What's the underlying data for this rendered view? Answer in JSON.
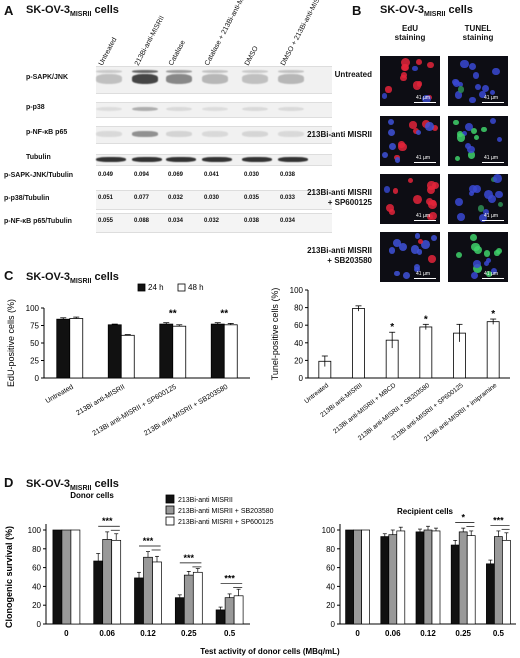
{
  "panelA": {
    "letter": "A",
    "title_main": "SK-OV-3",
    "title_sub": "MISRII",
    "title_tail": " cells",
    "lanes": [
      "Untreated",
      "213Bi-anti-MISRII",
      "Catalase",
      "Catalase + 213Bi-anti-MISRII",
      "DMSO",
      "DMSO + 213Bi-anti-MISRII"
    ],
    "blot_labels": [
      "p-SAPK/JNK",
      "p-p38",
      "p-NF-κB p65",
      "Tubulin"
    ],
    "ratio_rows": [
      {
        "label": "p-SAPK-JNK/Tubulin",
        "values": [
          "0.049",
          "0.094",
          "0.069",
          "0.041",
          "0.030",
          "0.038"
        ]
      },
      {
        "label": "p-p38/Tubulin",
        "values": [
          "0.051",
          "0.077",
          "0.032",
          "0.030",
          "0.035",
          "0.033"
        ]
      },
      {
        "label": "p-NF-κB p65/Tubulin",
        "values": [
          "0.055",
          "0.088",
          "0.034",
          "0.032",
          "0.038",
          "0.034"
        ]
      }
    ]
  },
  "panelB": {
    "letter": "B",
    "title_main": "SK-OV-3",
    "title_sub": "MISRII",
    "title_tail": " cells",
    "col_heads": [
      "EdU\nstaining",
      "TUNEL\nstaining"
    ],
    "rows": [
      "Untreated",
      "213Bi-anti MISRII",
      "213Bi-anti MISRII\n+ SP600125",
      "213Bi-anti MISRII\n+ SB203580"
    ],
    "scale_label": "41 µm"
  },
  "panelC": {
    "letter": "C",
    "title_main": "SK-OV-3",
    "title_sub": "MISRII",
    "title_tail": " cells",
    "legend": [
      "24 h",
      "48 h"
    ],
    "colors": {
      "bar_24h": "#111111",
      "bar_48h": "#ffffff"
    },
    "chart_data": [
      {
        "type": "bar",
        "categories": [
          "Untreated",
          "213Bi anti-MISRII",
          "213Bi anti-MISRII + SP600125",
          "213Bi anti-MISRII + SB203580"
        ],
        "series": [
          {
            "name": "24 h",
            "values": [
              84,
              76,
              77,
              77
            ],
            "errors": [
              2,
              1,
              2,
              2
            ]
          },
          {
            "name": "48 h",
            "values": [
              85,
              61,
              74,
              76
            ],
            "errors": [
              2,
              1,
              2,
              2
            ]
          }
        ],
        "significance": [
          "",
          "",
          "**",
          "**"
        ],
        "ylabel": "EdU-positive cells (%)",
        "yticks": [
          0,
          25,
          50,
          75,
          100
        ],
        "ylim": [
          0,
          100
        ]
      },
      {
        "type": "bar",
        "categories": [
          "Untreated",
          "213Bi anti-MISRII",
          "213Bi anti-MISRII + MBCD",
          "213Bi anti-MISRII + SB203580",
          "213Bi anti-MISRII + SP600125",
          "213Bi anti-MISRII + imipramine"
        ],
        "series": [
          {
            "values": [
              19,
              79,
              43,
              58,
              51,
              64
            ],
            "errors": [
              6,
              3,
              9,
              3,
              10,
              3
            ]
          }
        ],
        "significance": [
          "",
          "",
          "*",
          "*",
          "",
          "*"
        ],
        "ylabel": "Tunel-positive cells (%)",
        "yticks": [
          0,
          20,
          40,
          60,
          80,
          100
        ],
        "ylim": [
          0,
          100
        ]
      }
    ]
  },
  "panelD": {
    "letter": "D",
    "title_main": "SK-OV-3",
    "title_sub": "MISRII",
    "title_tail": " cells",
    "legend": [
      "213Bi-anti MISRII",
      "213Bi-anti MISRII + SB203580",
      "213Bi-anti MISRII + SP600125"
    ],
    "colors": {
      "s1": "#111111",
      "s2": "#999999",
      "s3": "#ffffff"
    },
    "xlabel": "Test activity of donor cells (MBq/mL)",
    "chart_data": [
      {
        "type": "bar",
        "title": "Donor cells",
        "categories": [
          "0",
          "0.06",
          "0.12",
          "0.25",
          "0.5"
        ],
        "series": [
          {
            "name": "213Bi-anti MISRII",
            "values": [
              100,
              67,
              49,
              28,
              15
            ],
            "errors": [
              0,
              8,
              6,
              3,
              3
            ]
          },
          {
            "name": "213Bi-anti MISRII + SB203580",
            "values": [
              100,
              90,
              71,
              52,
              28
            ],
            "errors": [
              0,
              8,
              6,
              4,
              4
            ]
          },
          {
            "name": "213Bi-anti MISRII + SP600125",
            "values": [
              100,
              89,
              66,
              55,
              30
            ],
            "errors": [
              0,
              7,
              6,
              4,
              7
            ]
          }
        ],
        "significance": [
          "",
          "***",
          "***",
          "***",
          "***"
        ],
        "ylabel": "Clonogenic survival (%)",
        "yticks": [
          0,
          20,
          40,
          60,
          80,
          100
        ],
        "ylim": [
          0,
          100
        ]
      },
      {
        "type": "bar",
        "title": "Recipient cells",
        "categories": [
          "0",
          "0.06",
          "0.12",
          "0.25",
          "0.5"
        ],
        "series": [
          {
            "name": "213Bi-anti MISRII",
            "values": [
              100,
              93,
              98,
              84,
              64
            ],
            "errors": [
              0,
              3,
              3,
              5,
              4
            ]
          },
          {
            "name": "213Bi-anti MISRII + SB203580",
            "values": [
              100,
              95,
              100,
              98,
              93
            ],
            "errors": [
              0,
              5,
              4,
              4,
              6
            ]
          },
          {
            "name": "213Bi-anti MISRII + SP600125",
            "values": [
              100,
              99,
              99,
              94,
              89
            ],
            "errors": [
              0,
              4,
              3,
              5,
              8
            ]
          }
        ],
        "significance": [
          "",
          "",
          "",
          "*",
          "***"
        ],
        "yticks": [
          0,
          20,
          40,
          60,
          80,
          100
        ],
        "ylim": [
          0,
          100
        ]
      }
    ]
  }
}
